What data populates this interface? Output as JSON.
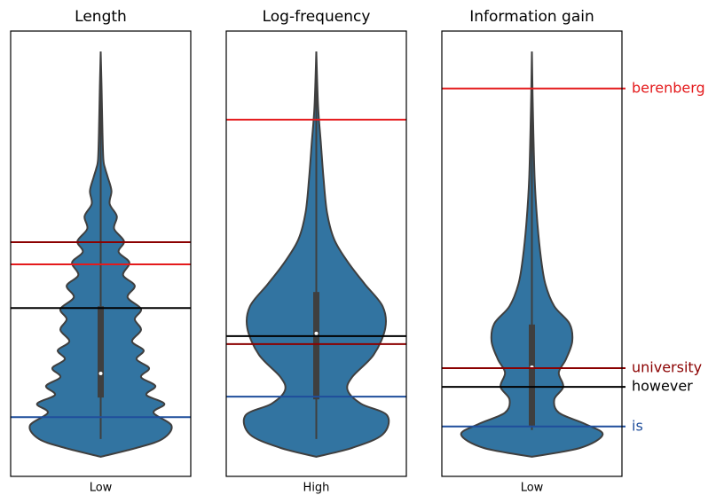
{
  "chart_data": {
    "type": "violin",
    "ylim": [
      0,
      1
    ],
    "violin_color": "#3274a1",
    "words": [
      {
        "name": "berenberg",
        "color": "#e41a1c"
      },
      {
        "name": "university",
        "color": "#8b0000"
      },
      {
        "name": "however",
        "color": "#000000"
      },
      {
        "name": "is",
        "color": "#1f4e9c"
      }
    ],
    "panels": [
      {
        "title": "Length",
        "xlabel": "Low",
        "values": [
          0.476,
          0.526,
          0.378,
          0.133
        ],
        "quartiles": [
          0.177,
          0.382
        ],
        "median": 0.231,
        "whiskers": [
          0.084,
          0.954
        ],
        "violin": {
          "y": [
            0.044,
            0.064,
            0.084,
            0.114,
            0.143,
            0.163,
            0.183,
            0.203,
            0.223,
            0.243,
            0.263,
            0.283,
            0.303,
            0.329,
            0.353,
            0.376,
            0.402,
            0.428,
            0.452,
            0.48,
            0.504,
            0.528,
            0.556,
            0.584,
            0.612,
            0.641,
            0.671,
            0.691,
            0.711,
            0.771,
            0.871,
            0.954
          ],
          "width": [
            0,
            0.4,
            0.69,
            0.79,
            0.59,
            0.71,
            0.51,
            0.61,
            0.45,
            0.54,
            0.4,
            0.48,
            0.35,
            0.45,
            0.38,
            0.45,
            0.3,
            0.38,
            0.25,
            0.32,
            0.2,
            0.26,
            0.15,
            0.18,
            0.1,
            0.12,
            0.08,
            0.05,
            0.03,
            0.02,
            0.01,
            0
          ]
        }
      },
      {
        "title": "Log-frequency",
        "xlabel": "High",
        "values": [
          0.801,
          0.297,
          0.315,
          0.179
        ],
        "quartiles": [
          0.173,
          0.414
        ],
        "median": 0.321,
        "whiskers": [
          0.084,
          0.954
        ],
        "violin": {
          "y": [
            0.044,
            0.064,
            0.094,
            0.137,
            0.163,
            0.193,
            0.223,
            0.273,
            0.333,
            0.382,
            0.432,
            0.482,
            0.532,
            0.592,
            0.671,
            0.751,
            0.831,
            0.954
          ],
          "width": [
            0,
            0.4,
            0.74,
            0.79,
            0.5,
            0.35,
            0.4,
            0.64,
            0.77,
            0.74,
            0.54,
            0.35,
            0.2,
            0.12,
            0.08,
            0.05,
            0.02,
            0
          ]
        }
      },
      {
        "title": "Information gain",
        "xlabel": "Low",
        "values": [
          0.871,
          0.243,
          0.201,
          0.112
        ],
        "quartiles": [
          0.114,
          0.341
        ],
        "median": 0.245,
        "whiskers": [
          0.104,
          0.954
        ],
        "violin": {
          "y": [
            0.044,
            0.064,
            0.094,
            0.118,
            0.143,
            0.173,
            0.201,
            0.233,
            0.263,
            0.303,
            0.343,
            0.382,
            0.432,
            0.492,
            0.572,
            0.671,
            0.831,
            0.954
          ],
          "width": [
            0,
            0.54,
            0.79,
            0.59,
            0.3,
            0.25,
            0.35,
            0.3,
            0.38,
            0.45,
            0.42,
            0.25,
            0.15,
            0.1,
            0.06,
            0.03,
            0.01,
            0
          ]
        }
      }
    ]
  }
}
